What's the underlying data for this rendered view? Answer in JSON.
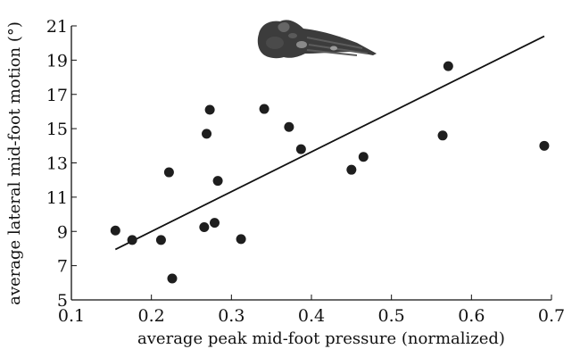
{
  "chart_data": {
    "type": "scatter",
    "title": "",
    "xlabel": "average peak mid-foot pressure (normalized)",
    "ylabel": "average lateral mid-foot motion (°)",
    "xlim": [
      0.1,
      0.7
    ],
    "ylim": [
      5,
      21
    ],
    "x_ticks": [
      "0.1",
      "0.2",
      "0.3",
      "0.4",
      "0.5",
      "0.6",
      "0.7"
    ],
    "y_ticks": [
      "5",
      "7",
      "9",
      "11",
      "13",
      "15",
      "17",
      "19",
      "21"
    ],
    "grid": false,
    "legend": "none",
    "marker_color": "#1e1e1e",
    "line_color": "#111111",
    "points": [
      {
        "x": 0.155,
        "y": 9.05
      },
      {
        "x": 0.176,
        "y": 8.5
      },
      {
        "x": 0.212,
        "y": 8.5
      },
      {
        "x": 0.222,
        "y": 12.45
      },
      {
        "x": 0.226,
        "y": 6.25
      },
      {
        "x": 0.266,
        "y": 9.25
      },
      {
        "x": 0.269,
        "y": 14.7
      },
      {
        "x": 0.273,
        "y": 16.1
      },
      {
        "x": 0.279,
        "y": 9.5
      },
      {
        "x": 0.283,
        "y": 11.95
      },
      {
        "x": 0.312,
        "y": 8.55
      },
      {
        "x": 0.341,
        "y": 16.15
      },
      {
        "x": 0.372,
        "y": 15.1
      },
      {
        "x": 0.387,
        "y": 13.8
      },
      {
        "x": 0.45,
        "y": 12.6
      },
      {
        "x": 0.465,
        "y": 13.35
      },
      {
        "x": 0.564,
        "y": 14.6
      },
      {
        "x": 0.571,
        "y": 18.65
      },
      {
        "x": 0.691,
        "y": 14.0
      }
    ],
    "trendline": {
      "x": [
        0.155,
        0.691
      ],
      "y": [
        7.95,
        20.4
      ]
    },
    "illustration": "foot-skeleton"
  }
}
